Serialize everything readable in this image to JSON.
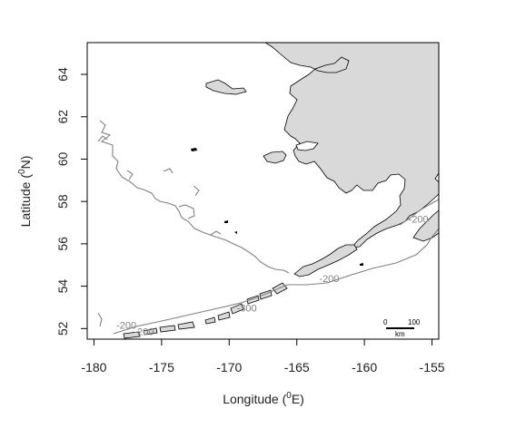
{
  "chart_data": {
    "type": "map",
    "xlabel_main": "Longitude (",
    "xlabel_sup": "0",
    "xlabel_end": "E)",
    "ylabel_main": "Latitude (",
    "ylabel_sup": "0",
    "ylabel_end": "N)",
    "xlim": [
      -180.5,
      -154.5
    ],
    "ylim": [
      51.5,
      65.5
    ],
    "x_ticks": [
      -180,
      -175,
      -170,
      -165,
      -160,
      -155
    ],
    "x_tick_labels": [
      "-180",
      "-175",
      "-170",
      "-165",
      "-160",
      "-155"
    ],
    "y_ticks": [
      52,
      54,
      56,
      58,
      60,
      62,
      64
    ],
    "y_tick_labels": [
      "52",
      "54",
      "56",
      "58",
      "60",
      "62",
      "64"
    ],
    "grid": false,
    "land_color": "#d9d9d9",
    "contour_color": "#808080",
    "contour_labels": [
      {
        "text": "-200",
        "lon": -156.0,
        "lat": 57.0
      },
      {
        "text": "-200",
        "lon": -162.6,
        "lat": 54.2
      },
      {
        "text": "-300",
        "lon": -168.7,
        "lat": 52.8
      },
      {
        "text": "-200",
        "lon": -177.6,
        "lat": 52.0
      },
      {
        "text": "-200",
        "lon": -176.3,
        "lat": 51.7
      }
    ],
    "scale_bar": {
      "start_label": "0",
      "end_label": "100",
      "unit": "km"
    }
  }
}
